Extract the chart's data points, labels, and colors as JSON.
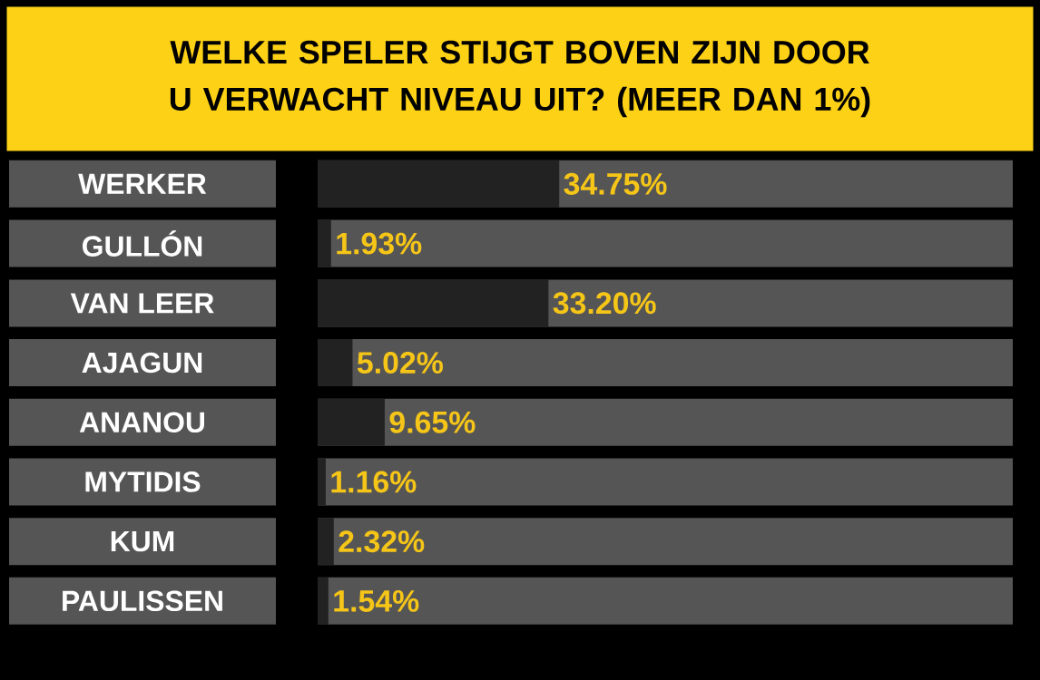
{
  "chart_data": {
    "type": "bar",
    "orientation": "horizontal",
    "title": "WELKE SPELER STIJGT BOVEN ZIJN DOOR U VERWACHT NIVEAU UIT? (MEER DAN 1%)",
    "categories": [
      "WERKER",
      "GULLÓN",
      "VAN LEER",
      "AJAGUN",
      "ANANOU",
      "MYTIDIS",
      "KUM",
      "PAULISSEN"
    ],
    "values": [
      34.75,
      1.93,
      33.2,
      5.02,
      9.65,
      1.16,
      2.32,
      1.54
    ],
    "value_labels": [
      "34.75%",
      "1.93%",
      "33.20%",
      "5.02%",
      "9.65%",
      "1.16%",
      "2.32%",
      "1.54%"
    ],
    "color": "#222222",
    "xlim": [
      0,
      100
    ]
  }
}
